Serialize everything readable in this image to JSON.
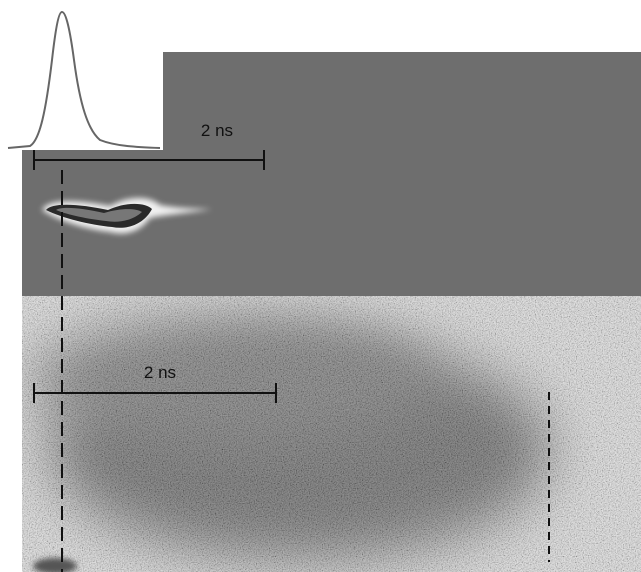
{
  "scale_bars": [
    {
      "label": "2 ns"
    },
    {
      "label": "2 ns"
    }
  ]
}
